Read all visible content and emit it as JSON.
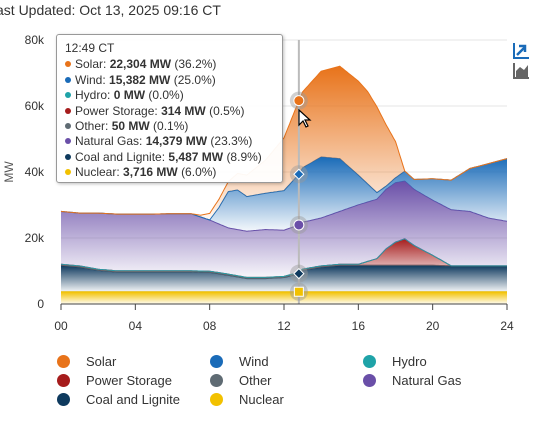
{
  "header": {
    "last_updated": "ast Updated: Oct 13, 2025 09:16 CT"
  },
  "icons": {
    "toggle_a": "area-chart-toggle-icon",
    "toggle_b": "stacked-chart-icon"
  },
  "tooltip": {
    "time": "12:49 CT",
    "rows": [
      {
        "name": "Solar",
        "value": "22,304 MW",
        "pct": "(36.2%)",
        "color": "#e8731a"
      },
      {
        "name": "Wind",
        "value": "15,382 MW",
        "pct": "(25.0%)",
        "color": "#1a6bb8"
      },
      {
        "name": "Hydro",
        "value": "0 MW",
        "pct": "(0.0%)",
        "color": "#1fa3a8"
      },
      {
        "name": "Power Storage",
        "value": "314 MW",
        "pct": "(0.5%)",
        "color": "#a61c1c"
      },
      {
        "name": "Other",
        "value": "50 MW",
        "pct": "(0.1%)",
        "color": "#5f6b73"
      },
      {
        "name": "Natural Gas",
        "value": "14,379 MW",
        "pct": "(23.3%)",
        "color": "#6a4fa8"
      },
      {
        "name": "Coal and Lignite",
        "value": "5,487 MW",
        "pct": "(8.9%)",
        "color": "#0e3a5e"
      },
      {
        "name": "Nuclear",
        "value": "3,716 MW",
        "pct": "(6.0%)",
        "color": "#f2c100"
      }
    ]
  },
  "chart_data": {
    "type": "area",
    "ylabel": "MW",
    "xlim": [
      0,
      24
    ],
    "ylim": [
      0,
      80000
    ],
    "xticks": [
      "00",
      "04",
      "08",
      "12",
      "16",
      "20",
      "24"
    ],
    "yticks": [
      "0",
      "20k",
      "40k",
      "60k",
      "80k"
    ],
    "grid": true,
    "hover_x": 12.8,
    "series": [
      {
        "name": "Nuclear",
        "color": "#f2c100",
        "x": [
          0,
          4,
          8,
          12,
          16,
          20,
          24
        ],
        "values": [
          3700,
          3700,
          3700,
          3716,
          3700,
          3700,
          3700
        ]
      },
      {
        "name": "Coal and Lignite",
        "color": "#0e3a5e",
        "x": [
          0,
          1,
          2,
          3,
          4,
          5,
          6,
          7,
          8,
          9,
          10,
          11,
          12,
          12.8,
          13,
          14,
          15,
          16,
          17,
          18,
          19,
          20,
          21,
          22,
          23,
          24
        ],
        "values": [
          8000,
          7500,
          6500,
          6000,
          6000,
          6000,
          6000,
          6000,
          5900,
          5000,
          4000,
          4000,
          4300,
          5487,
          6500,
          7500,
          8000,
          8000,
          8000,
          8000,
          8000,
          8000,
          7800,
          7800,
          7800,
          7800
        ]
      },
      {
        "name": "Other",
        "color": "#5f6b73",
        "x": [
          0,
          24
        ],
        "values": [
          50,
          50
        ]
      },
      {
        "name": "Power Storage",
        "color": "#a61c1c",
        "x": [
          0,
          4,
          8,
          10,
          12,
          12.8,
          14,
          16,
          17,
          17.5,
          18,
          18.5,
          19,
          20,
          21,
          22,
          23,
          24
        ],
        "values": [
          300,
          300,
          300,
          300,
          300,
          314,
          300,
          300,
          2000,
          5000,
          7000,
          8000,
          6000,
          3000,
          0,
          0,
          0,
          0
        ]
      },
      {
        "name": "Hydro",
        "color": "#1fa3a8",
        "x": [
          0,
          24
        ],
        "values": [
          0,
          0
        ]
      },
      {
        "name": "Natural Gas",
        "color": "#6a4fa8",
        "x": [
          0,
          1,
          2,
          3,
          4,
          5,
          6,
          7,
          8,
          9,
          10,
          11,
          12,
          12.8,
          13,
          14,
          15,
          16,
          17,
          18,
          19,
          20,
          21,
          22,
          23,
          24
        ],
        "values": [
          16000,
          16000,
          17000,
          17200,
          17200,
          17200,
          17300,
          17300,
          15500,
          14000,
          14000,
          14500,
          14000,
          14379,
          14200,
          14500,
          16000,
          18000,
          18000,
          18000,
          17000,
          16700,
          17000,
          16500,
          14500,
          13500
        ]
      },
      {
        "name": "Wind",
        "color": "#1a6bb8",
        "x": [
          0,
          2,
          4,
          6,
          8,
          8.5,
          9,
          9.5,
          10,
          11,
          12,
          12.8,
          13,
          14,
          15,
          16,
          17,
          17.5,
          18,
          18.5,
          19,
          20,
          21,
          22,
          23,
          24
        ],
        "values": [
          0,
          0,
          0,
          0,
          0,
          5000,
          11000,
          12000,
          10500,
          11000,
          12000,
          15382,
          16500,
          18500,
          16000,
          9000,
          2000,
          1000,
          1500,
          3000,
          3000,
          6500,
          9000,
          13000,
          16500,
          19000
        ]
      },
      {
        "name": "Solar",
        "color": "#e8731a",
        "x": [
          0,
          6,
          7,
          7.5,
          8,
          9,
          9.5,
          10,
          11,
          12,
          12.8,
          13,
          14,
          15,
          16,
          16.5,
          17,
          18,
          18.5,
          19,
          20,
          21,
          22,
          23,
          24
        ],
        "values": [
          0,
          0,
          0,
          500,
          2000,
          3000,
          5000,
          6500,
          10000,
          16000,
          22304,
          23000,
          26000,
          28000,
          28500,
          28000,
          26000,
          11000,
          0,
          0,
          0,
          0,
          0,
          0,
          0
        ]
      }
    ]
  },
  "legend": [
    {
      "label": "Solar",
      "color": "#e8731a"
    },
    {
      "label": "Wind",
      "color": "#1a6bb8"
    },
    {
      "label": "Hydro",
      "color": "#1fa3a8"
    },
    {
      "label": "Power Storage",
      "color": "#a61c1c"
    },
    {
      "label": "Other",
      "color": "#5f6b73"
    },
    {
      "label": "Natural Gas",
      "color": "#6a4fa8"
    },
    {
      "label": "Coal and Lignite",
      "color": "#0e3a5e"
    },
    {
      "label": "Nuclear",
      "color": "#f2c100"
    }
  ]
}
